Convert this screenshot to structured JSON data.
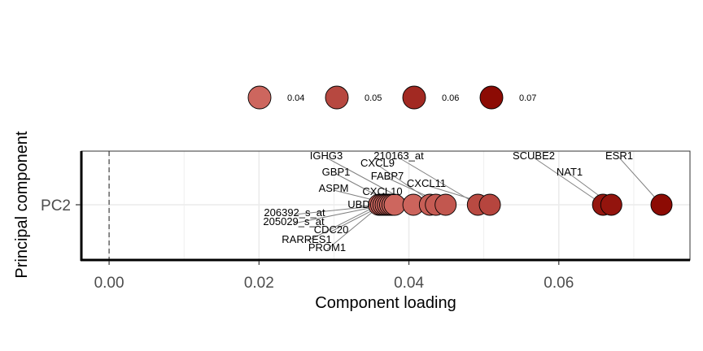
{
  "chart_data": {
    "type": "scatter",
    "title": "",
    "xlabel": "Component loading",
    "ylabel": "Principal component",
    "xlim": [
      -0.0037,
      0.0775
    ],
    "x_ticks": [
      0.0,
      0.02,
      0.04,
      0.06
    ],
    "x_tick_labels": [
      "0.00",
      "0.02",
      "0.04",
      "0.06"
    ],
    "categories": [
      "PC2"
    ],
    "reference_line_x": 0,
    "grid": true,
    "legend": {
      "placement": "top",
      "title": "",
      "values": [
        0.04,
        0.05,
        0.06,
        0.07
      ],
      "labels": [
        "0.04",
        "0.05",
        "0.06",
        "0.07"
      ]
    },
    "points": [
      {
        "gene": "RARRES1",
        "x": 0.036,
        "y": "PC2"
      },
      {
        "gene": "PROM1",
        "x": 0.0363,
        "y": "PC2"
      },
      {
        "gene": "CDC20",
        "x": 0.0366,
        "y": "PC2"
      },
      {
        "gene": "205029_s_at",
        "x": 0.0369,
        "y": "PC2"
      },
      {
        "gene": "206392_s_at",
        "x": 0.0372,
        "y": "PC2"
      },
      {
        "gene": "UBD",
        "x": 0.0375,
        "y": "PC2"
      },
      {
        "gene": "ASPM",
        "x": 0.0378,
        "y": "PC2"
      },
      {
        "gene": "GBP1",
        "x": 0.0381,
        "y": "PC2"
      },
      {
        "gene": "IGHG3",
        "x": 0.0406,
        "y": "PC2"
      },
      {
        "gene": "CXCL10",
        "x": 0.0428,
        "y": "PC2"
      },
      {
        "gene": "CXCL9",
        "x": 0.0436,
        "y": "PC2"
      },
      {
        "gene": "FABP7",
        "x": 0.0449,
        "y": "PC2"
      },
      {
        "gene": "210163_at",
        "x": 0.0492,
        "y": "PC2"
      },
      {
        "gene": "CXCL11",
        "x": 0.0508,
        "y": "PC2"
      },
      {
        "gene": "SCUBE2",
        "x": 0.0659,
        "y": "PC2"
      },
      {
        "gene": "NAT1",
        "x": 0.067,
        "y": "PC2"
      },
      {
        "gene": "ESR1",
        "x": 0.0737,
        "y": "PC2"
      }
    ]
  }
}
